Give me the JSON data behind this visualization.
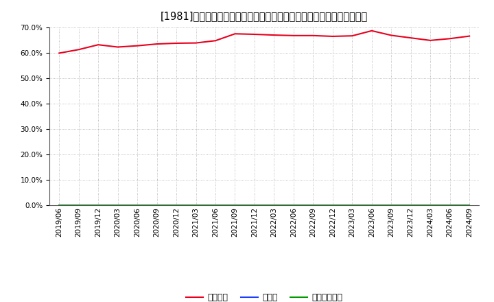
{
  "title": "[1981]　自己資本、のれん、繰延税金資産の総資産に対する比率の推移",
  "x_labels": [
    "2019/06",
    "2019/09",
    "2019/12",
    "2020/03",
    "2020/06",
    "2020/09",
    "2020/12",
    "2021/03",
    "2021/06",
    "2021/09",
    "2021/12",
    "2022/03",
    "2022/06",
    "2022/09",
    "2022/12",
    "2023/03",
    "2023/06",
    "2023/09",
    "2023/12",
    "2024/03",
    "2024/06",
    "2024/09"
  ],
  "equity_ratio": [
    0.598,
    0.612,
    0.631,
    0.622,
    0.627,
    0.634,
    0.637,
    0.638,
    0.647,
    0.674,
    0.672,
    0.669,
    0.667,
    0.667,
    0.664,
    0.666,
    0.686,
    0.668,
    0.658,
    0.648,
    0.655,
    0.665
  ],
  "goodwill_ratio": [
    0,
    0,
    0,
    0,
    0,
    0,
    0,
    0,
    0,
    0,
    0,
    0,
    0,
    0,
    0,
    0,
    0,
    0,
    0,
    0,
    0,
    0
  ],
  "deferred_tax_ratio": [
    0,
    0,
    0,
    0,
    0,
    0,
    0,
    0,
    0,
    0,
    0,
    0,
    0,
    0,
    0,
    0,
    0,
    0,
    0,
    0,
    0,
    0
  ],
  "equity_color": "#e8001c",
  "goodwill_color": "#1e3eff",
  "deferred_tax_color": "#009900",
  "legend_label_equity": "自己資本",
  "legend_label_goodwill": "のれん",
  "legend_label_deferred": "繰延税金資産",
  "ylim": [
    0.0,
    0.7
  ],
  "yticks": [
    0.0,
    0.1,
    0.2,
    0.3,
    0.4,
    0.5,
    0.6,
    0.7
  ],
  "background_color": "#ffffff",
  "grid_color": "#aaaaaa",
  "title_fontsize": 10.5,
  "tick_fontsize": 7.5,
  "legend_fontsize": 9
}
